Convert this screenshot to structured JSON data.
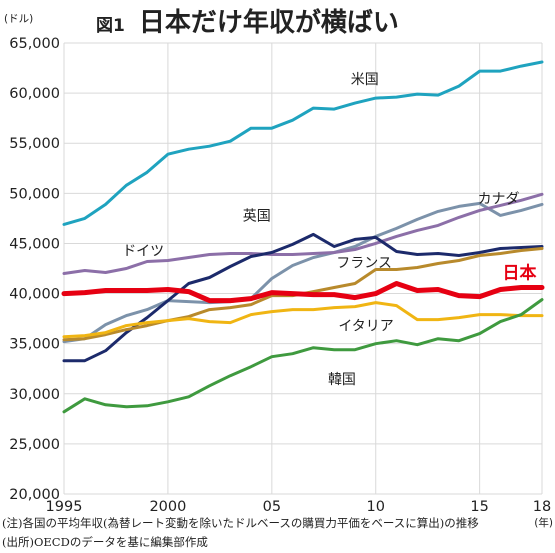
{
  "figure": {
    "number": "図1",
    "title": "日本だけ年収が横ばい",
    "notes": [
      "(注)各国の平均年収(為替レート変動を除いたドルベースの購買力平価をベースに算出)の推移",
      "(出所)OECDのデータを基に編集部作成"
    ]
  },
  "colors": {
    "background": "#ffffff",
    "grid": "#d9d9d9",
    "axis_text": "#222222",
    "japan_label": "#e60012"
  },
  "chart_data": {
    "type": "line",
    "title": "日本だけ年収が横ばい",
    "y_unit_label": "(ドル)",
    "x_unit_label": "(年)",
    "xlim": [
      1995,
      2018
    ],
    "ylim": [
      20000,
      65000
    ],
    "grid": true,
    "x_ticks": [
      1995,
      2000,
      2005,
      2010,
      2015,
      2018
    ],
    "x_tick_labels": [
      "1995",
      "2000",
      "05",
      "10",
      "15",
      "18"
    ],
    "y_ticks": [
      20000,
      25000,
      30000,
      35000,
      40000,
      45000,
      50000,
      55000,
      60000,
      65000
    ],
    "y_tick_labels": [
      "20,000",
      "25,000",
      "30,000",
      "35,000",
      "40,000",
      "45,000",
      "50,000",
      "55,000",
      "60,000",
      "65,000"
    ],
    "x": [
      1995,
      1996,
      1997,
      1998,
      1999,
      2000,
      2001,
      2002,
      2003,
      2004,
      2005,
      2006,
      2007,
      2008,
      2009,
      2010,
      2011,
      2012,
      2013,
      2014,
      2015,
      2016,
      2017,
      2018
    ],
    "series": [
      {
        "name": "米国",
        "color": "#1fa3bf",
        "width": 3,
        "values": [
          46900,
          47500,
          48900,
          50800,
          52100,
          53900,
          54400,
          54700,
          55200,
          56500,
          56500,
          57300,
          58500,
          58400,
          59000,
          59500,
          59600,
          59900,
          59800,
          60700,
          62200,
          62200,
          62700,
          63100
        ]
      },
      {
        "name": "カナダ",
        "color": "#7c92aa",
        "width": 3,
        "values": [
          35200,
          35500,
          36900,
          37800,
          38400,
          39300,
          39200,
          39100,
          39200,
          39500,
          41500,
          42800,
          43600,
          44100,
          44700,
          45700,
          46500,
          47400,
          48200,
          48700,
          49000,
          47800,
          48300,
          48900
        ]
      },
      {
        "name": "ドイツ",
        "color": "#8c6fa8",
        "width": 3,
        "values": [
          42000,
          42300,
          42100,
          42500,
          43200,
          43300,
          43600,
          43900,
          44000,
          44000,
          43900,
          43900,
          44000,
          44100,
          44400,
          45000,
          45700,
          46300,
          46800,
          47600,
          48300,
          48800,
          49300,
          49900
        ]
      },
      {
        "name": "英国",
        "color": "#1c2a6b",
        "width": 3,
        "values": [
          33300,
          33300,
          34300,
          36100,
          37600,
          39300,
          41000,
          41600,
          42700,
          43700,
          44100,
          44900,
          45900,
          44700,
          45400,
          45600,
          44200,
          43900,
          44000,
          43800,
          44100,
          44500,
          44600,
          44700
        ]
      },
      {
        "name": "フランス",
        "color": "#b88a2c",
        "width": 3,
        "values": [
          35400,
          35500,
          35900,
          36400,
          36800,
          37300,
          37700,
          38400,
          38600,
          38900,
          39800,
          39800,
          40200,
          40600,
          41000,
          42400,
          42400,
          42600,
          43000,
          43300,
          43800,
          44000,
          44300,
          44500
        ]
      },
      {
        "name": "日本",
        "color": "#e60012",
        "width": 5,
        "values": [
          40000,
          40100,
          40300,
          40300,
          40300,
          40400,
          40200,
          39300,
          39300,
          39500,
          40100,
          40000,
          39900,
          39900,
          39600,
          40000,
          41000,
          40300,
          40400,
          39800,
          39700,
          40400,
          40600,
          40600
        ]
      },
      {
        "name": "イタリア",
        "color": "#f0b513",
        "width": 3,
        "values": [
          35700,
          35800,
          36100,
          36800,
          37100,
          37300,
          37500,
          37200,
          37100,
          37900,
          38200,
          38400,
          38400,
          38600,
          38700,
          39100,
          38800,
          37400,
          37400,
          37600,
          37900,
          37900,
          37800,
          37800
        ]
      },
      {
        "name": "韓国",
        "color": "#3f9a3f",
        "width": 3,
        "values": [
          28200,
          29500,
          28900,
          28700,
          28800,
          29200,
          29700,
          30800,
          31800,
          32700,
          33700,
          34000,
          34600,
          34400,
          34400,
          35000,
          35300,
          34900,
          35500,
          35300,
          36000,
          37200,
          37900,
          39400
        ]
      }
    ],
    "labels": [
      {
        "series": "米国",
        "text": "米国",
        "at_x": 2008.8,
        "at_y": 60900
      },
      {
        "series": "カナダ",
        "text": "カナダ",
        "at_x": 2014.9,
        "at_y": 49000
      },
      {
        "series": "ドイツ",
        "text": "ドイツ",
        "at_x": 1997.8,
        "at_y": 43800
      },
      {
        "series": "英国",
        "text": "英国",
        "at_x": 2003.6,
        "at_y": 47300
      },
      {
        "series": "フランス",
        "text": "フランス",
        "at_x": 2008.1,
        "at_y": 42600
      },
      {
        "series": "日本",
        "text": "日本",
        "at_x": 2016.1,
        "at_y": 41500
      },
      {
        "series": "イタリア",
        "text": "イタリア",
        "at_x": 2008.2,
        "at_y": 36300
      },
      {
        "series": "韓国",
        "text": "韓国",
        "at_x": 2007.7,
        "at_y": 31000
      }
    ]
  }
}
